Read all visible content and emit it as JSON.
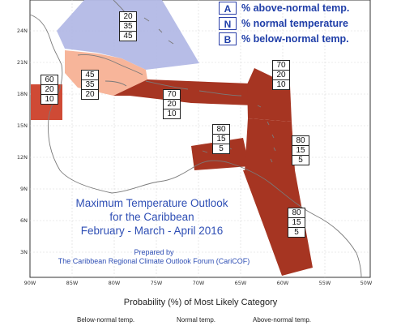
{
  "legend": {
    "items": [
      {
        "key": "A",
        "text": "% above-normal temp."
      },
      {
        "key": "N",
        "text": "% normal temperature"
      },
      {
        "key": "B",
        "text": "% below-normal temp."
      }
    ]
  },
  "axes": {
    "lat_labels": [
      "24N",
      "21N",
      "18N",
      "15N",
      "12N",
      "9N",
      "6N",
      "3N"
    ],
    "lon_labels": [
      "90W",
      "85W",
      "80W",
      "75W",
      "70W",
      "65W",
      "60W",
      "55W",
      "50W"
    ]
  },
  "regions": [
    {
      "id": "north-caribbean-blue",
      "probs": [
        "20",
        "35",
        "45"
      ]
    },
    {
      "id": "jamaica-peach",
      "probs": [
        "45",
        "35",
        "20"
      ]
    },
    {
      "id": "belize-box",
      "probs": [
        "60",
        "20",
        "10"
      ]
    },
    {
      "id": "hispaniola-band",
      "probs": [
        "70",
        "20",
        "10"
      ]
    },
    {
      "id": "leeward-islands",
      "probs": [
        "70",
        "20",
        "10"
      ]
    },
    {
      "id": "abc-islands",
      "probs": [
        "80",
        "15",
        "5"
      ]
    },
    {
      "id": "windward-islands",
      "probs": [
        "80",
        "15",
        "5"
      ]
    },
    {
      "id": "guianas",
      "probs": [
        "80",
        "15",
        "5"
      ]
    }
  ],
  "title": {
    "line1": "Maximum Temperature Outlook",
    "line2": "for the Caribbean",
    "line3": "February - March - April 2016"
  },
  "credit": {
    "line1": "Prepared by",
    "line2": "The Caribbean Regional Climate Outlook Forum (CariCOF)"
  },
  "bottom": {
    "axis_title": "Probability (%) of Most Likely Category",
    "categories": [
      "Below-normal temp.",
      "Normal temp.",
      "Above-normal temp."
    ]
  },
  "colors": {
    "blue_region": "#b3b9e6",
    "peach_region": "#f7b59a",
    "red_region": "#a63522",
    "coast": "#7a7a7a"
  }
}
